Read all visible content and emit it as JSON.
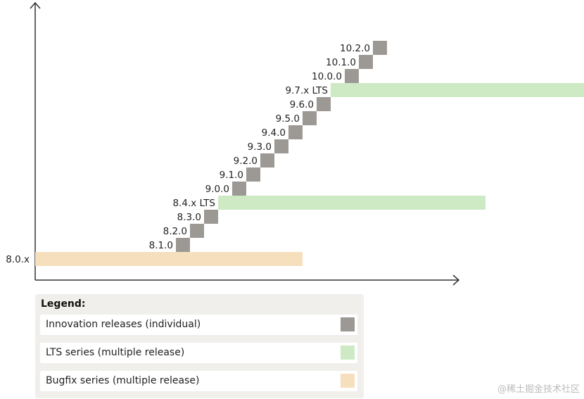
{
  "colors": {
    "innovation": "#9c9894",
    "lts": "#cdeac5",
    "bugfix": "#f6dfbc",
    "axis": "#333333"
  },
  "releases": [
    {
      "label": "8.0.x",
      "type": "bugfix"
    },
    {
      "label": "8.1.0",
      "type": "innovation"
    },
    {
      "label": "8.2.0",
      "type": "innovation"
    },
    {
      "label": "8.3.0",
      "type": "innovation"
    },
    {
      "label": "8.4.x LTS",
      "type": "lts"
    },
    {
      "label": "9.0.0",
      "type": "innovation"
    },
    {
      "label": "9.1.0",
      "type": "innovation"
    },
    {
      "label": "9.2.0",
      "type": "innovation"
    },
    {
      "label": "9.3.0",
      "type": "innovation"
    },
    {
      "label": "9.4.0",
      "type": "innovation"
    },
    {
      "label": "9.5.0",
      "type": "innovation"
    },
    {
      "label": "9.6.0",
      "type": "innovation"
    },
    {
      "label": "9.7.x LTS",
      "type": "lts"
    },
    {
      "label": "10.0.0",
      "type": "innovation"
    },
    {
      "label": "10.1.0",
      "type": "innovation"
    },
    {
      "label": "10.2.0",
      "type": "innovation"
    }
  ],
  "legend": {
    "title": "Legend:",
    "items": [
      {
        "label": "Innovation releases (individual)",
        "type": "innovation"
      },
      {
        "label": "LTS series (multiple release)",
        "type": "lts"
      },
      {
        "label": "Bugfix series (multiple release)",
        "type": "bugfix"
      }
    ]
  },
  "watermark": "@稀土掘金技术社区"
}
